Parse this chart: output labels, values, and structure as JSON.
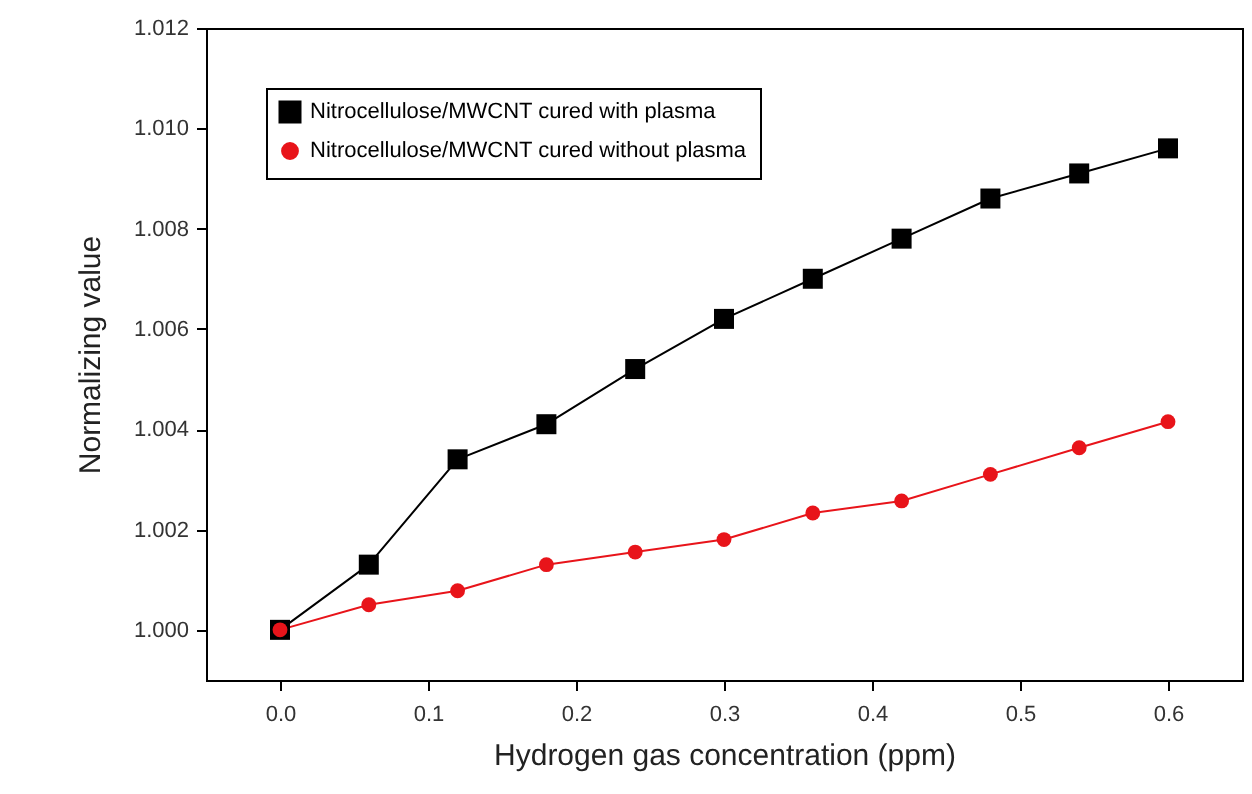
{
  "chart_data": {
    "type": "line",
    "xlabel": "Hydrogen gas concentration (ppm)",
    "ylabel": "Normalizing value",
    "x": [
      0,
      0.06,
      0.12,
      0.18,
      0.24,
      0.3,
      0.36,
      0.42,
      0.48,
      0.54,
      0.6
    ],
    "series": [
      {
        "name": "Nitrocellulose/MWCNT cured with plasma",
        "color": "#000000",
        "marker": "square",
        "values": [
          1.0,
          1.0013,
          1.0034,
          1.0041,
          1.0052,
          1.0062,
          1.007,
          1.0078,
          1.0086,
          1.0091,
          1.0096
        ]
      },
      {
        "name": "Nitrocellulose/MWCNT cured without plasma",
        "color": "#e8141a",
        "marker": "circle",
        "values": [
          1.0,
          1.0005,
          1.00078,
          1.0013,
          1.00155,
          1.0018,
          1.00233,
          1.00257,
          1.0031,
          1.00363,
          1.00415
        ]
      }
    ],
    "xlim": [
      -0.05,
      0.65
    ],
    "xticks": [
      {
        "value": 0,
        "label": "0.0"
      },
      0.1,
      0.2,
      0.3,
      0.4,
      0.5,
      0.6
    ],
    "ylim": [
      0.999,
      1.012
    ],
    "yticks": [
      {
        "value": 1,
        "label": "1.000"
      },
      {
        "value": 1.002,
        "label": "1.002"
      },
      {
        "value": 1.004,
        "label": "1.004"
      },
      {
        "value": 1.006,
        "label": "1.006"
      },
      {
        "value": 1.008,
        "label": "1.008"
      },
      {
        "value": 1.01,
        "label": "1.010"
      },
      {
        "value": 1.012,
        "label": "1.012"
      }
    ],
    "grid": false,
    "legend": "top left",
    "line_style": "solid"
  }
}
